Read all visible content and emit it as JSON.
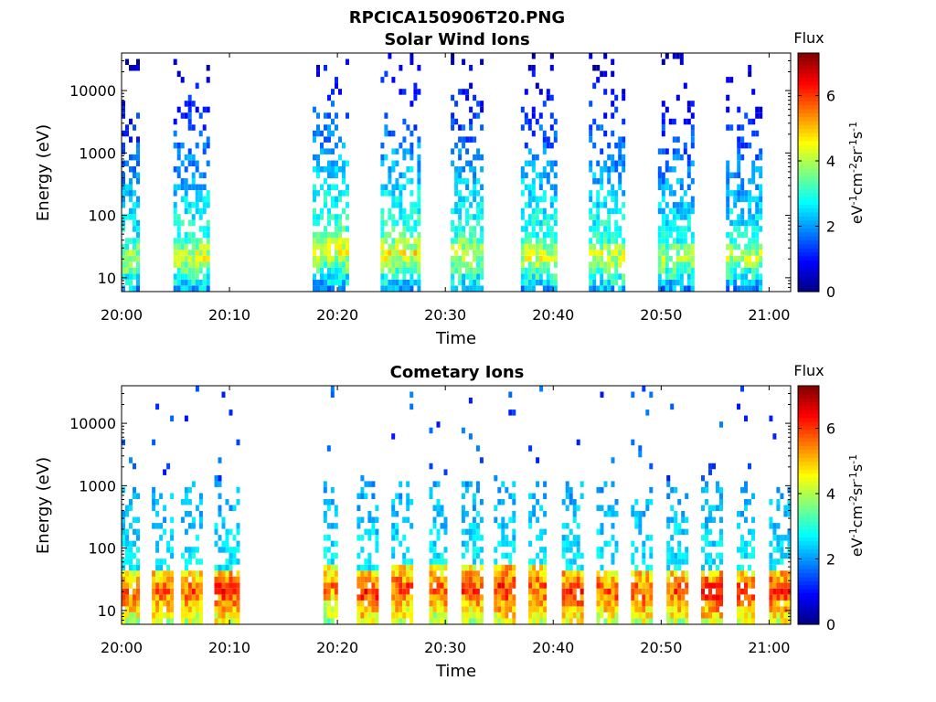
{
  "figure_title": "RPCICA150906T20.PNG",
  "chart_data": [
    {
      "type": "heatmap",
      "title": "Solar Wind Ions",
      "xlabel": "Time",
      "ylabel": "Energy (eV)",
      "x_ticks": [
        "20:00",
        "20:10",
        "20:20",
        "20:30",
        "20:40",
        "20:50",
        "21:00"
      ],
      "x_range_minutes": [
        0,
        62
      ],
      "y_scale": "log",
      "y_ticks": [
        "10",
        "100",
        "1000",
        "10000"
      ],
      "y_range": [
        6,
        40000
      ],
      "colorbar": {
        "label": "Flux",
        "unit": "eV-1cm-2sr-1s-1",
        "ticks": [
          "0",
          "2",
          "4",
          "6"
        ],
        "range": [
          0,
          7.3
        ],
        "colormap": "jet"
      },
      "bursts": [
        {
          "start_min": 0,
          "end_min": 1.5,
          "peak_energy_eV": 20,
          "peak_flux": 4.8
        },
        {
          "start_min": 4.8,
          "end_min": 8,
          "peak_energy_eV": 22,
          "peak_flux": 5.0
        },
        {
          "start_min": 17.7,
          "end_min": 20.9,
          "peak_energy_eV": 28,
          "peak_flux": 5.2
        },
        {
          "start_min": 24,
          "end_min": 27.5,
          "peak_energy_eV": 25,
          "peak_flux": 5.2
        },
        {
          "start_min": 30.5,
          "end_min": 33.5,
          "peak_energy_eV": 25,
          "peak_flux": 5.0
        },
        {
          "start_min": 37,
          "end_min": 40.2,
          "peak_energy_eV": 22,
          "peak_flux": 5.0
        },
        {
          "start_min": 43.3,
          "end_min": 46.6,
          "peak_energy_eV": 22,
          "peak_flux": 5.0
        },
        {
          "start_min": 49.7,
          "end_min": 53,
          "peak_energy_eV": 22,
          "peak_flux": 4.8
        },
        {
          "start_min": 56,
          "end_min": 59.3,
          "peak_energy_eV": 22,
          "peak_flux": 4.8
        }
      ],
      "no_data_gap_min": [
        10.3,
        17.7
      ]
    },
    {
      "type": "heatmap",
      "title": "Cometary Ions",
      "xlabel": "Time",
      "ylabel": "Energy (eV)",
      "x_ticks": [
        "20:00",
        "20:10",
        "20:20",
        "20:30",
        "20:40",
        "20:50",
        "21:00"
      ],
      "x_range_minutes": [
        0,
        62
      ],
      "y_scale": "log",
      "y_ticks": [
        "10",
        "100",
        "1000",
        "10000"
      ],
      "y_range": [
        6,
        40000
      ],
      "colorbar": {
        "label": "Flux",
        "unit": "eV-1cm-2sr-1s-1",
        "ticks": [
          "0",
          "2",
          "4",
          "6"
        ],
        "range": [
          0,
          7.3
        ],
        "colormap": "jet"
      },
      "bursts": [
        {
          "start_min": 0,
          "end_min": 1.5,
          "peak_energy_eV": 20,
          "peak_flux": 6.5
        },
        {
          "start_min": 2.8,
          "end_min": 4.5,
          "peak_energy_eV": 20,
          "peak_flux": 6.5
        },
        {
          "start_min": 5.5,
          "end_min": 7.3,
          "peak_energy_eV": 20,
          "peak_flux": 6.5
        },
        {
          "start_min": 8.6,
          "end_min": 10.7,
          "peak_energy_eV": 20,
          "peak_flux": 6.8
        },
        {
          "start_min": 18.7,
          "end_min": 20,
          "peak_energy_eV": 25,
          "peak_flux": 6.3
        },
        {
          "start_min": 21.8,
          "end_min": 23.5,
          "peak_energy_eV": 20,
          "peak_flux": 6.8
        },
        {
          "start_min": 25,
          "end_min": 26.7,
          "peak_energy_eV": 22,
          "peak_flux": 6.6
        },
        {
          "start_min": 28.5,
          "end_min": 30,
          "peak_energy_eV": 22,
          "peak_flux": 6.5
        },
        {
          "start_min": 31.5,
          "end_min": 33.2,
          "peak_energy_eV": 22,
          "peak_flux": 6.6
        },
        {
          "start_min": 34.5,
          "end_min": 36.4,
          "peak_energy_eV": 22,
          "peak_flux": 6.9
        },
        {
          "start_min": 37.7,
          "end_min": 39.3,
          "peak_energy_eV": 22,
          "peak_flux": 6.5
        },
        {
          "start_min": 40.8,
          "end_min": 42.7,
          "peak_energy_eV": 20,
          "peak_flux": 6.8
        },
        {
          "start_min": 44,
          "end_min": 45.8,
          "peak_energy_eV": 20,
          "peak_flux": 6.5
        },
        {
          "start_min": 47.2,
          "end_min": 49,
          "peak_energy_eV": 20,
          "peak_flux": 6.6
        },
        {
          "start_min": 50.5,
          "end_min": 52.2,
          "peak_energy_eV": 20,
          "peak_flux": 6.5
        },
        {
          "start_min": 53.7,
          "end_min": 55.6,
          "peak_energy_eV": 20,
          "peak_flux": 6.9
        },
        {
          "start_min": 57,
          "end_min": 58.6,
          "peak_energy_eV": 20,
          "peak_flux": 6.6
        },
        {
          "start_min": 60,
          "end_min": 61.8,
          "peak_energy_eV": 20,
          "peak_flux": 6.8
        }
      ],
      "no_data_gap_min": [
        10.7,
        17.7
      ]
    }
  ]
}
